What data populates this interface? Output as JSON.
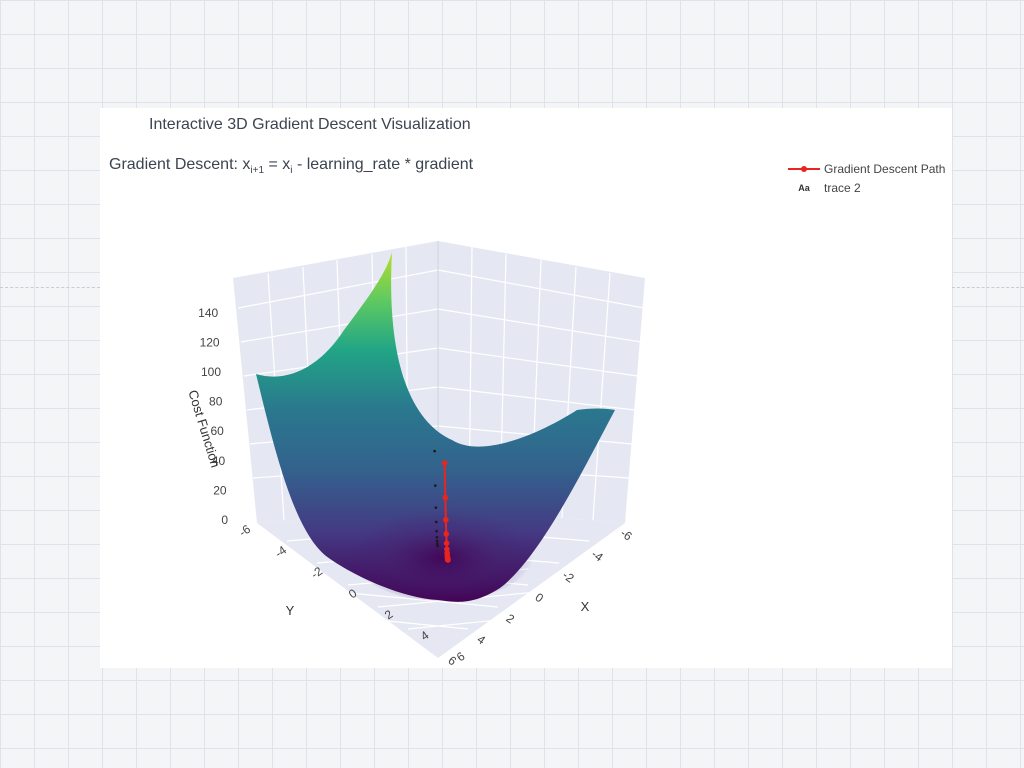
{
  "chart_data": {
    "type": "surface3d",
    "title": "Interactive 3D Gradient Descent Visualization",
    "subtitle": {
      "prefix": "Gradient Descent: x",
      "sub1": "i+1",
      "mid": " = x",
      "sub2": "i",
      "suffix": " - learning_rate * gradient"
    },
    "xlabel": "X",
    "ylabel": "Y",
    "zlabel": "Cost Function",
    "x_ticks": [
      "-6",
      "-4",
      "-2",
      "0",
      "2",
      "4",
      "6"
    ],
    "y_ticks": [
      "-6",
      "-4",
      "-2",
      "0",
      "2",
      "4",
      "6"
    ],
    "z_ticks": [
      "0",
      "20",
      "40",
      "60",
      "80",
      "100",
      "120",
      "140"
    ],
    "xlim": [
      -6,
      6
    ],
    "ylim": [
      -6,
      6
    ],
    "zlim": [
      0,
      144
    ],
    "colorscale": "Viridis",
    "legend": [
      "Gradient Descent Path",
      "trace 2"
    ],
    "legend_position": "top-right",
    "series": [
      {
        "name": "Gradient Descent Path",
        "color": "#e8251f",
        "mode": "lines+markers",
        "x": [
          -4.8,
          -3.84,
          -3.07,
          -2.46,
          -1.97,
          -1.57,
          -1.26,
          -1.01,
          -0.81,
          -0.64,
          -0.52,
          -0.41,
          -0.33,
          -0.26,
          -0.21,
          -0.17,
          -0.13,
          -0.11
        ],
        "y": [
          -4.8,
          -3.84,
          -3.07,
          -2.46,
          -1.97,
          -1.57,
          -1.26,
          -1.01,
          -0.81,
          -0.64,
          -0.52,
          -0.41,
          -0.33,
          -0.26,
          -0.21,
          -0.17,
          -0.13,
          -0.11
        ],
        "z": [
          46.1,
          29.5,
          18.9,
          12.1,
          7.7,
          4.9,
          3.2,
          2.0,
          1.3,
          0.8,
          0.5,
          0.34,
          0.22,
          0.14,
          0.09,
          0.06,
          0.03,
          0.02
        ]
      },
      {
        "name": "trace 2",
        "color": "#1a1a1a",
        "mode": "text",
        "x": [
          -4.8,
          -3.84,
          -3.07,
          -2.46,
          -1.97,
          -1.57,
          -1.26,
          -1.01,
          -0.81,
          -0.64
        ],
        "y": [
          -4.8,
          -3.84,
          -3.07,
          -2.46,
          -1.97,
          -1.57,
          -1.26,
          -1.01,
          -0.81,
          -0.64
        ],
        "z": [
          46.1,
          29.5,
          18.9,
          12.1,
          7.7,
          4.9,
          3.2,
          2.0,
          1.3,
          0.8
        ]
      }
    ]
  }
}
